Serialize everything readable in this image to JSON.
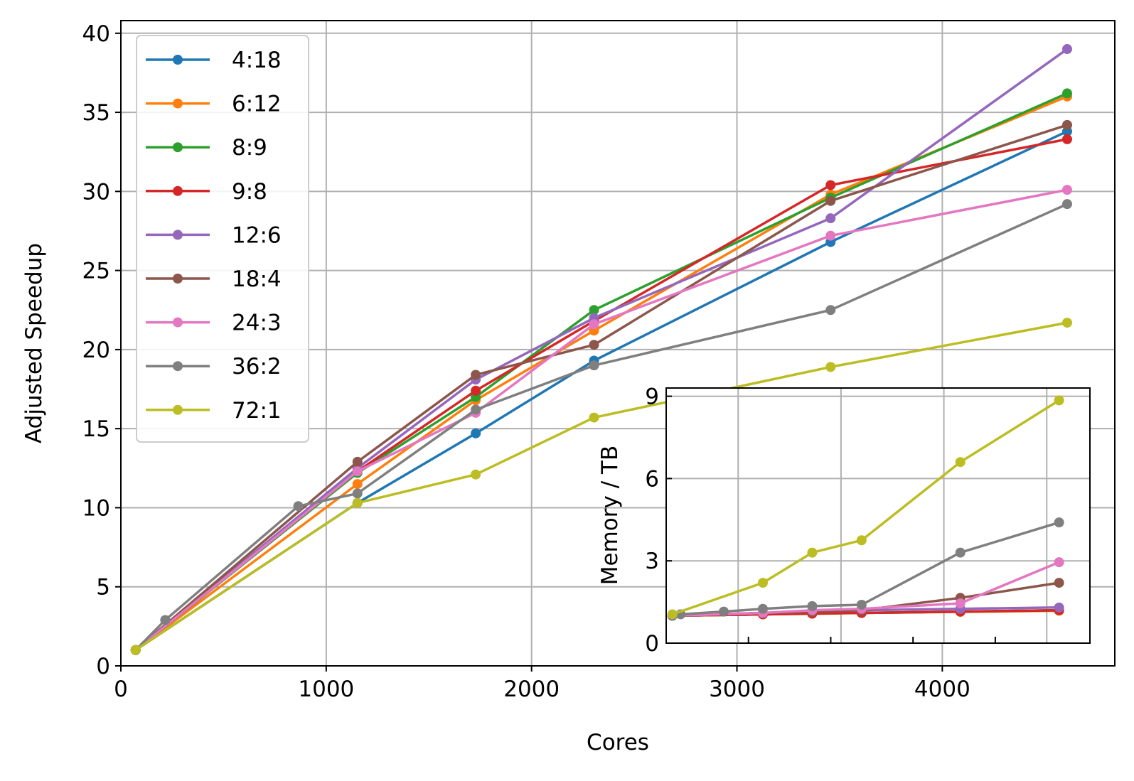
{
  "chart_data": [
    {
      "type": "line",
      "xlabel": "Cores",
      "ylabel": "Adjusted Speedup",
      "xlim": [
        0,
        4840
      ],
      "ylim": [
        0,
        40.8
      ],
      "xticks": [
        0,
        1000,
        2000,
        3000,
        4000
      ],
      "yticks": [
        0,
        5,
        10,
        15,
        20,
        25,
        30,
        35,
        40
      ],
      "grid": true,
      "legend": "top-left",
      "series": [
        {
          "name": "4:18",
          "color": "#1f77b4",
          "points": [
            [
              72,
              1.0
            ],
            [
              1152,
              10.3
            ],
            [
              1728,
              14.7
            ],
            [
              2304,
              19.3
            ],
            [
              3456,
              26.8
            ],
            [
              4608,
              33.8
            ]
          ]
        },
        {
          "name": "6:12",
          "color": "#ff7f0e",
          "points": [
            [
              72,
              1.0
            ],
            [
              1152,
              11.5
            ],
            [
              1728,
              16.8
            ],
            [
              2304,
              21.2
            ],
            [
              3456,
              29.8
            ],
            [
              4608,
              36.0
            ]
          ]
        },
        {
          "name": "8:9",
          "color": "#2ca02c",
          "points": [
            [
              72,
              1.0
            ],
            [
              1152,
              12.2
            ],
            [
              1728,
              17.0
            ],
            [
              2304,
              22.5
            ],
            [
              3456,
              29.6
            ],
            [
              4608,
              36.2
            ]
          ]
        },
        {
          "name": "9:8",
          "color": "#d62728",
          "points": [
            [
              72,
              1.0
            ],
            [
              1152,
              12.3
            ],
            [
              1728,
              17.4
            ],
            [
              2304,
              21.8
            ],
            [
              3456,
              30.4
            ],
            [
              4608,
              33.3
            ]
          ]
        },
        {
          "name": "12:6",
          "color": "#9467bd",
          "points": [
            [
              72,
              1.0
            ],
            [
              1152,
              12.5
            ],
            [
              1728,
              18.1
            ],
            [
              2304,
              22.0
            ],
            [
              3456,
              28.3
            ],
            [
              4608,
              39.0
            ]
          ]
        },
        {
          "name": "18:4",
          "color": "#8c564b",
          "points": [
            [
              72,
              1.0
            ],
            [
              1152,
              12.9
            ],
            [
              1728,
              18.4
            ],
            [
              2304,
              20.3
            ],
            [
              3456,
              29.4
            ],
            [
              4608,
              34.2
            ]
          ]
        },
        {
          "name": "24:3",
          "color": "#e377c2",
          "points": [
            [
              72,
              1.0
            ],
            [
              1152,
              12.3
            ],
            [
              1728,
              16.0
            ],
            [
              2304,
              21.6
            ],
            [
              3456,
              27.2
            ],
            [
              4608,
              30.1
            ]
          ]
        },
        {
          "name": "36:2",
          "color": "#7f7f7f",
          "points": [
            [
              72,
              1.0
            ],
            [
              216,
              2.9
            ],
            [
              864,
              10.1
            ],
            [
              1152,
              10.9
            ],
            [
              1728,
              16.2
            ],
            [
              2304,
              19.0
            ],
            [
              3456,
              22.5
            ],
            [
              4608,
              29.2
            ]
          ]
        },
        {
          "name": "72:1",
          "color": "#bcbd22",
          "points": [
            [
              72,
              1.0
            ],
            [
              1152,
              10.3
            ],
            [
              1728,
              12.1
            ],
            [
              2304,
              15.7
            ],
            [
              3456,
              18.9
            ],
            [
              4608,
              21.7
            ]
          ]
        }
      ]
    },
    {
      "type": "line",
      "xlabel": "",
      "ylabel": "Memory / TB",
      "xlim": [
        2650,
        4710
      ],
      "ylim": [
        0,
        9.3
      ],
      "yticks": [
        0,
        3,
        6,
        9
      ],
      "xgrid": [
        3000,
        3500,
        4000,
        4500
      ],
      "xminorticks": [
        3050,
        3450,
        3850,
        4250
      ],
      "grid": true,
      "series": [
        {
          "name": "4:18",
          "color": "#1f77b4",
          "points": [
            [
              2680,
              1.0
            ],
            [
              3120,
              1.05
            ],
            [
              3360,
              1.08
            ],
            [
              3600,
              1.1
            ],
            [
              4080,
              1.15
            ],
            [
              4560,
              1.2
            ]
          ]
        },
        {
          "name": "6:12",
          "color": "#ff7f0e",
          "points": [
            [
              2680,
              1.0
            ],
            [
              3120,
              1.05
            ],
            [
              3360,
              1.07
            ],
            [
              3600,
              1.1
            ],
            [
              4080,
              1.14
            ],
            [
              4560,
              1.18
            ]
          ]
        },
        {
          "name": "8:9",
          "color": "#2ca02c",
          "points": [
            [
              2680,
              1.0
            ],
            [
              3120,
              1.05
            ],
            [
              3360,
              1.08
            ],
            [
              3600,
              1.1
            ],
            [
              4080,
              1.15
            ],
            [
              4560,
              1.2
            ]
          ]
        },
        {
          "name": "9:8",
          "color": "#d62728",
          "points": [
            [
              2680,
              1.0
            ],
            [
              3120,
              1.05
            ],
            [
              3360,
              1.08
            ],
            [
              3600,
              1.1
            ],
            [
              4080,
              1.15
            ],
            [
              4560,
              1.2
            ]
          ]
        },
        {
          "name": "12:6",
          "color": "#9467bd",
          "points": [
            [
              2680,
              1.0
            ],
            [
              3120,
              1.1
            ],
            [
              3360,
              1.15
            ],
            [
              3600,
              1.2
            ],
            [
              4080,
              1.25
            ],
            [
              4560,
              1.3
            ]
          ]
        },
        {
          "name": "18:4",
          "color": "#8c564b",
          "points": [
            [
              2680,
              1.0
            ],
            [
              3120,
              1.1
            ],
            [
              3360,
              1.15
            ],
            [
              3600,
              1.2
            ],
            [
              4080,
              1.65
            ],
            [
              4560,
              2.2
            ]
          ]
        },
        {
          "name": "24:3",
          "color": "#e377c2",
          "points": [
            [
              2680,
              1.0
            ],
            [
              3120,
              1.1
            ],
            [
              3360,
              1.2
            ],
            [
              3600,
              1.25
            ],
            [
              4080,
              1.45
            ],
            [
              4560,
              2.95
            ]
          ]
        },
        {
          "name": "36:2",
          "color": "#7f7f7f",
          "points": [
            [
              2680,
              1.0
            ],
            [
              2720,
              1.05
            ],
            [
              2930,
              1.15
            ],
            [
              3120,
              1.25
            ],
            [
              3360,
              1.35
            ],
            [
              3600,
              1.4
            ],
            [
              4080,
              3.3
            ],
            [
              4560,
              4.4
            ]
          ]
        },
        {
          "name": "72:1",
          "color": "#bcbd22",
          "points": [
            [
              2680,
              1.05
            ],
            [
              3120,
              2.2
            ],
            [
              3360,
              3.3
            ],
            [
              3600,
              3.75
            ],
            [
              4080,
              6.6
            ],
            [
              4560,
              8.85
            ]
          ]
        }
      ]
    }
  ]
}
